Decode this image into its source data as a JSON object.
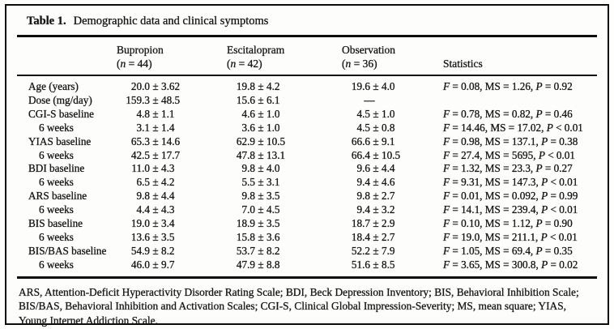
{
  "table": {
    "label": "Table 1.",
    "caption": "Demographic data and clinical symptoms",
    "columns": [
      {
        "id": "row-header",
        "line1": "",
        "line2": ""
      },
      {
        "id": "bupropion",
        "line1": "Bupropion",
        "line2": "(n = 44)"
      },
      {
        "id": "escitalopram",
        "line1": "Escitalopram",
        "line2": "(n = 42)"
      },
      {
        "id": "observation",
        "line1": "Observation",
        "line2": "(n = 36)"
      },
      {
        "id": "statistics",
        "line1": "",
        "line2": "Statistics"
      }
    ],
    "rows": [
      {
        "label": "Age (years)",
        "indent": false,
        "bupropion": "20.0 ± 3.62",
        "escitalopram": "19.8 ± 4.2",
        "observation": "19.6 ± 4.0",
        "statistics": "F = 0.08, MS = 1.26, P = 0.92"
      },
      {
        "label": "Dose (mg/day)",
        "indent": false,
        "bupropion": "159.3 ± 48.5",
        "escitalopram": "15.6 ± 6.1",
        "observation": "—",
        "statistics": ""
      },
      {
        "label": "CGI-S baseline",
        "indent": false,
        "bupropion": "4.8 ± 1.1",
        "escitalopram": "4.6 ± 1.0",
        "observation": "4.5 ± 1.0",
        "statistics": "F = 0.78, MS = 0.82, P = 0.46"
      },
      {
        "label": "6 weeks",
        "indent": true,
        "bupropion": "3.1 ± 1.4",
        "escitalopram": "3.6 ± 1.0",
        "observation": "4.5 ± 0.8",
        "statistics": "F = 14.46, MS = 17.02, P < 0.01"
      },
      {
        "label": "YIAS baseline",
        "indent": false,
        "bupropion": "65.3 ± 14.6",
        "escitalopram": "62.9 ± 10.5",
        "observation": "66.6 ± 9.1",
        "statistics": "F = 0.98, MS = 137.1, P = 0.38"
      },
      {
        "label": "6 weeks",
        "indent": true,
        "bupropion": "42.5 ± 17.7",
        "escitalopram": "47.8 ± 13.1",
        "observation": "66.4 ± 10.5",
        "statistics": "F = 27.4, MS = 5695, P < 0.01"
      },
      {
        "label": "BDI baseline",
        "indent": false,
        "bupropion": "11.0 ± 4.3",
        "escitalopram": "9.8 ± 4.0",
        "observation": "9.6 ± 4.4",
        "statistics": "F = 1.32, MS = 23.3, P = 0.27"
      },
      {
        "label": "6 weeks",
        "indent": true,
        "bupropion": "6.5 ± 4.2",
        "escitalopram": "5.5 ± 3.1",
        "observation": "9.4 ± 4.6",
        "statistics": "F = 9.31, MS = 147.3, P < 0.01"
      },
      {
        "label": "ARS baseline",
        "indent": false,
        "bupropion": "9.8 ± 4.4",
        "escitalopram": "9.8 ± 3.5",
        "observation": "9.8 ± 2.7",
        "statistics": "F = 0.01, MS = 0.092, P = 0.99"
      },
      {
        "label": "6 weeks",
        "indent": true,
        "bupropion": "4.4 ± 4.3",
        "escitalopram": "7.0 ± 4.5",
        "observation": "9.4 ± 3.2",
        "statistics": "F = 14.1, MS = 239.4, P < 0.01"
      },
      {
        "label": "BIS baseline",
        "indent": false,
        "bupropion": "19.0 ± 3.4",
        "escitalopram": "18.9 ± 3.5",
        "observation": "18.7 ± 2.9",
        "statistics": "F = 0.10, MS = 1.12, P = 0.90"
      },
      {
        "label": "6 weeks",
        "indent": true,
        "bupropion": "13.6 ± 3.5",
        "escitalopram": "15.8 ± 3.6",
        "observation": "18.4 ± 2.7",
        "statistics": "F = 19.0, MS = 211.1, P < 0.01"
      },
      {
        "label": "BIS/BAS baseline",
        "indent": false,
        "bupropion": "54.9 ± 8.2",
        "escitalopram": "53.7 ± 8.2",
        "observation": "52.2 ± 7.9",
        "statistics": "F = 1.05, MS = 69.4, P = 0.35"
      },
      {
        "label": "6 weeks",
        "indent": true,
        "bupropion": "46.0 ± 9.7",
        "escitalopram": "47.9 ± 8.8",
        "observation": "51.6 ± 8.5",
        "statistics": "F = 3.65, MS = 300.8, P = 0.02"
      }
    ],
    "footnote": "ARS, Attention-Deficit Hyperactivity Disorder Rating Scale; BDI, Beck Depression Inventory; BIS, Behavioral Inhibition Scale; BIS/BAS, Behavioral Inhibition and Activation Scales; CGI-S, Clinical Global Impression-Severity; MS, mean square; YIAS, Young Internet Addiction Scale."
  },
  "colors": {
    "ink": "#181614",
    "paper": "#fdfdfb",
    "border": "#0c0c0c"
  }
}
